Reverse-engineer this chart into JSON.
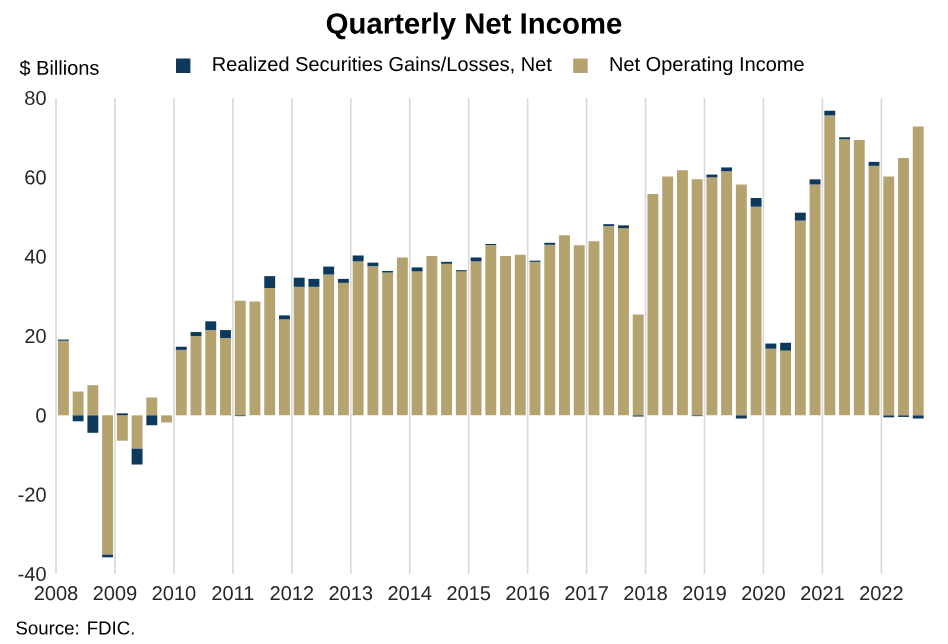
{
  "chart_data": {
    "type": "bar",
    "title": "Quarterly Net Income",
    "ylabel": "$ Billions",
    "categories": [
      "2008",
      null,
      null,
      null,
      "2009",
      null,
      null,
      null,
      "2010",
      null,
      null,
      null,
      "2011",
      null,
      null,
      null,
      "2012",
      null,
      null,
      null,
      "2013",
      null,
      null,
      null,
      "2014",
      null,
      null,
      null,
      "2015",
      null,
      null,
      null,
      "2016",
      null,
      null,
      null,
      "2017",
      null,
      null,
      null,
      "2018",
      null,
      null,
      null,
      "2019",
      null,
      null,
      null,
      "2020",
      null,
      null,
      null,
      "2021",
      null,
      null,
      null,
      "2022",
      null,
      null
    ],
    "stacked": true,
    "series": [
      {
        "name": "Net Operating Income",
        "color": "#b5a36f",
        "values": [
          18.8,
          6.0,
          7.6,
          -35.1,
          -6.4,
          -8.4,
          4.5,
          -1.8,
          16.5,
          20.0,
          21.5,
          19.5,
          28.9,
          28.7,
          32.1,
          24.2,
          32.4,
          32.4,
          35.5,
          33.4,
          38.8,
          37.6,
          36.0,
          39.8,
          36.3,
          40.2,
          38.2,
          36.3,
          38.8,
          42.9,
          40.2,
          40.5,
          38.7,
          43.0,
          45.4,
          42.9,
          43.9,
          47.7,
          47.2,
          25.4,
          55.8,
          60.2,
          61.8,
          59.5,
          60.0,
          61.5,
          58.2,
          52.6,
          16.8,
          16.3,
          49.1,
          58.2,
          75.6,
          69.6,
          69.4,
          62.9,
          60.2,
          64.9,
          72.8
        ]
      },
      {
        "name": "Realized Securities Gains/Losses, Net",
        "color": "#0d3a5c",
        "values": [
          0.3,
          -1.5,
          -4.4,
          -0.7,
          0.5,
          -4.0,
          -2.5,
          null,
          0.8,
          1.0,
          2.2,
          2.0,
          -0.2,
          null,
          3.0,
          1.0,
          2.3,
          2.0,
          2.0,
          1.0,
          1.5,
          0.9,
          0.4,
          null,
          1.0,
          null,
          0.5,
          0.3,
          1.0,
          0.3,
          null,
          null,
          0.3,
          0.5,
          null,
          null,
          null,
          0.5,
          0.7,
          -0.3,
          null,
          null,
          null,
          -0.2,
          0.7,
          1.0,
          -0.8,
          2.2,
          1.3,
          2.0,
          2.0,
          1.3,
          1.2,
          0.5,
          null,
          1.0,
          -0.5,
          -0.4,
          -0.8
        ]
      }
    ],
    "ylim": [
      -40,
      80
    ],
    "yticks": [
      -40,
      -20,
      0,
      20,
      40,
      60,
      80
    ],
    "grid": "x",
    "legend": "top",
    "annotations": [
      "Source: FDIC."
    ]
  }
}
